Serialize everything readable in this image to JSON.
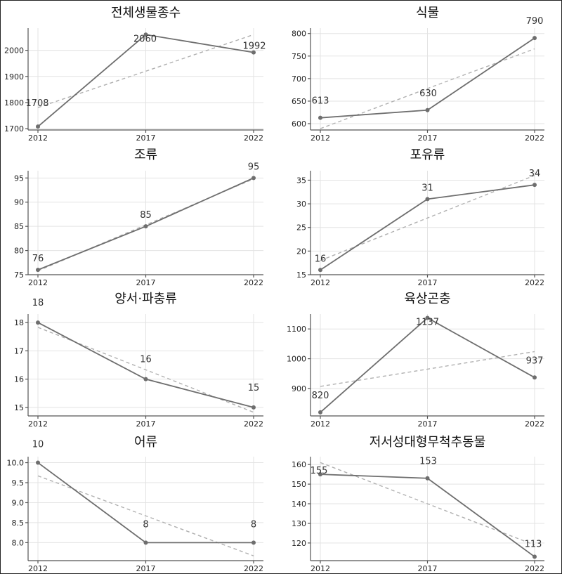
{
  "chart_data": [
    {
      "type": "line",
      "title": "전체생물종수",
      "categories": [
        "2012",
        "2017",
        "2022"
      ],
      "values": [
        1708,
        2060,
        1992
      ],
      "data_labels": [
        "1708",
        "2060",
        "1992"
      ],
      "trendline": [
        1781,
        1920,
        2060
      ],
      "yticks": [
        1700,
        1800,
        1900,
        2000
      ],
      "ylim": [
        1695,
        2085
      ],
      "grid": true
    },
    {
      "type": "line",
      "title": "식물",
      "categories": [
        "2012",
        "2017",
        "2022"
      ],
      "values": [
        613,
        630,
        790
      ],
      "data_labels": [
        "613",
        "630",
        "790"
      ],
      "trendline": [
        589,
        678,
        766
      ],
      "yticks": [
        600,
        650,
        700,
        750,
        800
      ],
      "ylim": [
        586,
        812
      ],
      "grid": true
    },
    {
      "type": "line",
      "title": "조류",
      "categories": [
        "2012",
        "2017",
        "2022"
      ],
      "values": [
        76,
        85,
        95
      ],
      "data_labels": [
        "76",
        "85",
        "95"
      ],
      "trendline": [
        75.8,
        85.3,
        94.8
      ],
      "yticks": [
        75,
        80,
        85,
        90,
        95
      ],
      "ylim": [
        75,
        96.5
      ],
      "grid": true
    },
    {
      "type": "line",
      "title": "포유류",
      "categories": [
        "2012",
        "2017",
        "2022"
      ],
      "values": [
        16,
        31,
        34
      ],
      "data_labels": [
        "16",
        "31",
        "34"
      ],
      "trendline": [
        18,
        27,
        36
      ],
      "yticks": [
        15,
        20,
        25,
        30,
        35
      ],
      "ylim": [
        15,
        37
      ],
      "grid": true
    },
    {
      "type": "line",
      "title": "양서·파충류",
      "categories": [
        "2012",
        "2017",
        "2022"
      ],
      "values": [
        18,
        16,
        15
      ],
      "data_labels": [
        "18",
        "16",
        "15"
      ],
      "trendline": [
        17.83,
        16.33,
        14.83
      ],
      "yticks": [
        15,
        16,
        17,
        18
      ],
      "ylim": [
        14.7,
        18.3
      ],
      "grid": true
    },
    {
      "type": "line",
      "title": "육상곤충",
      "categories": [
        "2012",
        "2017",
        "2022"
      ],
      "values": [
        820,
        1137,
        937
      ],
      "data_labels": [
        "820",
        "1137",
        "937"
      ],
      "trendline": [
        907,
        965,
        1024
      ],
      "yticks": [
        900,
        1000,
        1100
      ],
      "ylim": [
        808,
        1150
      ],
      "grid": true
    },
    {
      "type": "line",
      "title": "어류",
      "categories": [
        "2012",
        "2017",
        "2022"
      ],
      "values": [
        10,
        8,
        8
      ],
      "data_labels": [
        "10",
        "8",
        "8"
      ],
      "trendline": [
        9.67,
        8.67,
        7.67
      ],
      "yticks": [
        8.0,
        8.5,
        9.0,
        9.5,
        10.0
      ],
      "ytick_labels": [
        "8.0",
        "8.5",
        "9.0",
        "9.5",
        "10.0"
      ],
      "ylim": [
        7.55,
        10.15
      ],
      "grid": true
    },
    {
      "type": "line",
      "title": "저서성대형무척추동물",
      "categories": [
        "2012",
        "2017",
        "2022"
      ],
      "values": [
        155,
        153,
        113
      ],
      "data_labels": [
        "155",
        "153",
        "113"
      ],
      "trendline": [
        161,
        140,
        119
      ],
      "yticks": [
        120,
        130,
        140,
        150,
        160
      ],
      "ylim": [
        111,
        164
      ],
      "grid": true
    }
  ]
}
